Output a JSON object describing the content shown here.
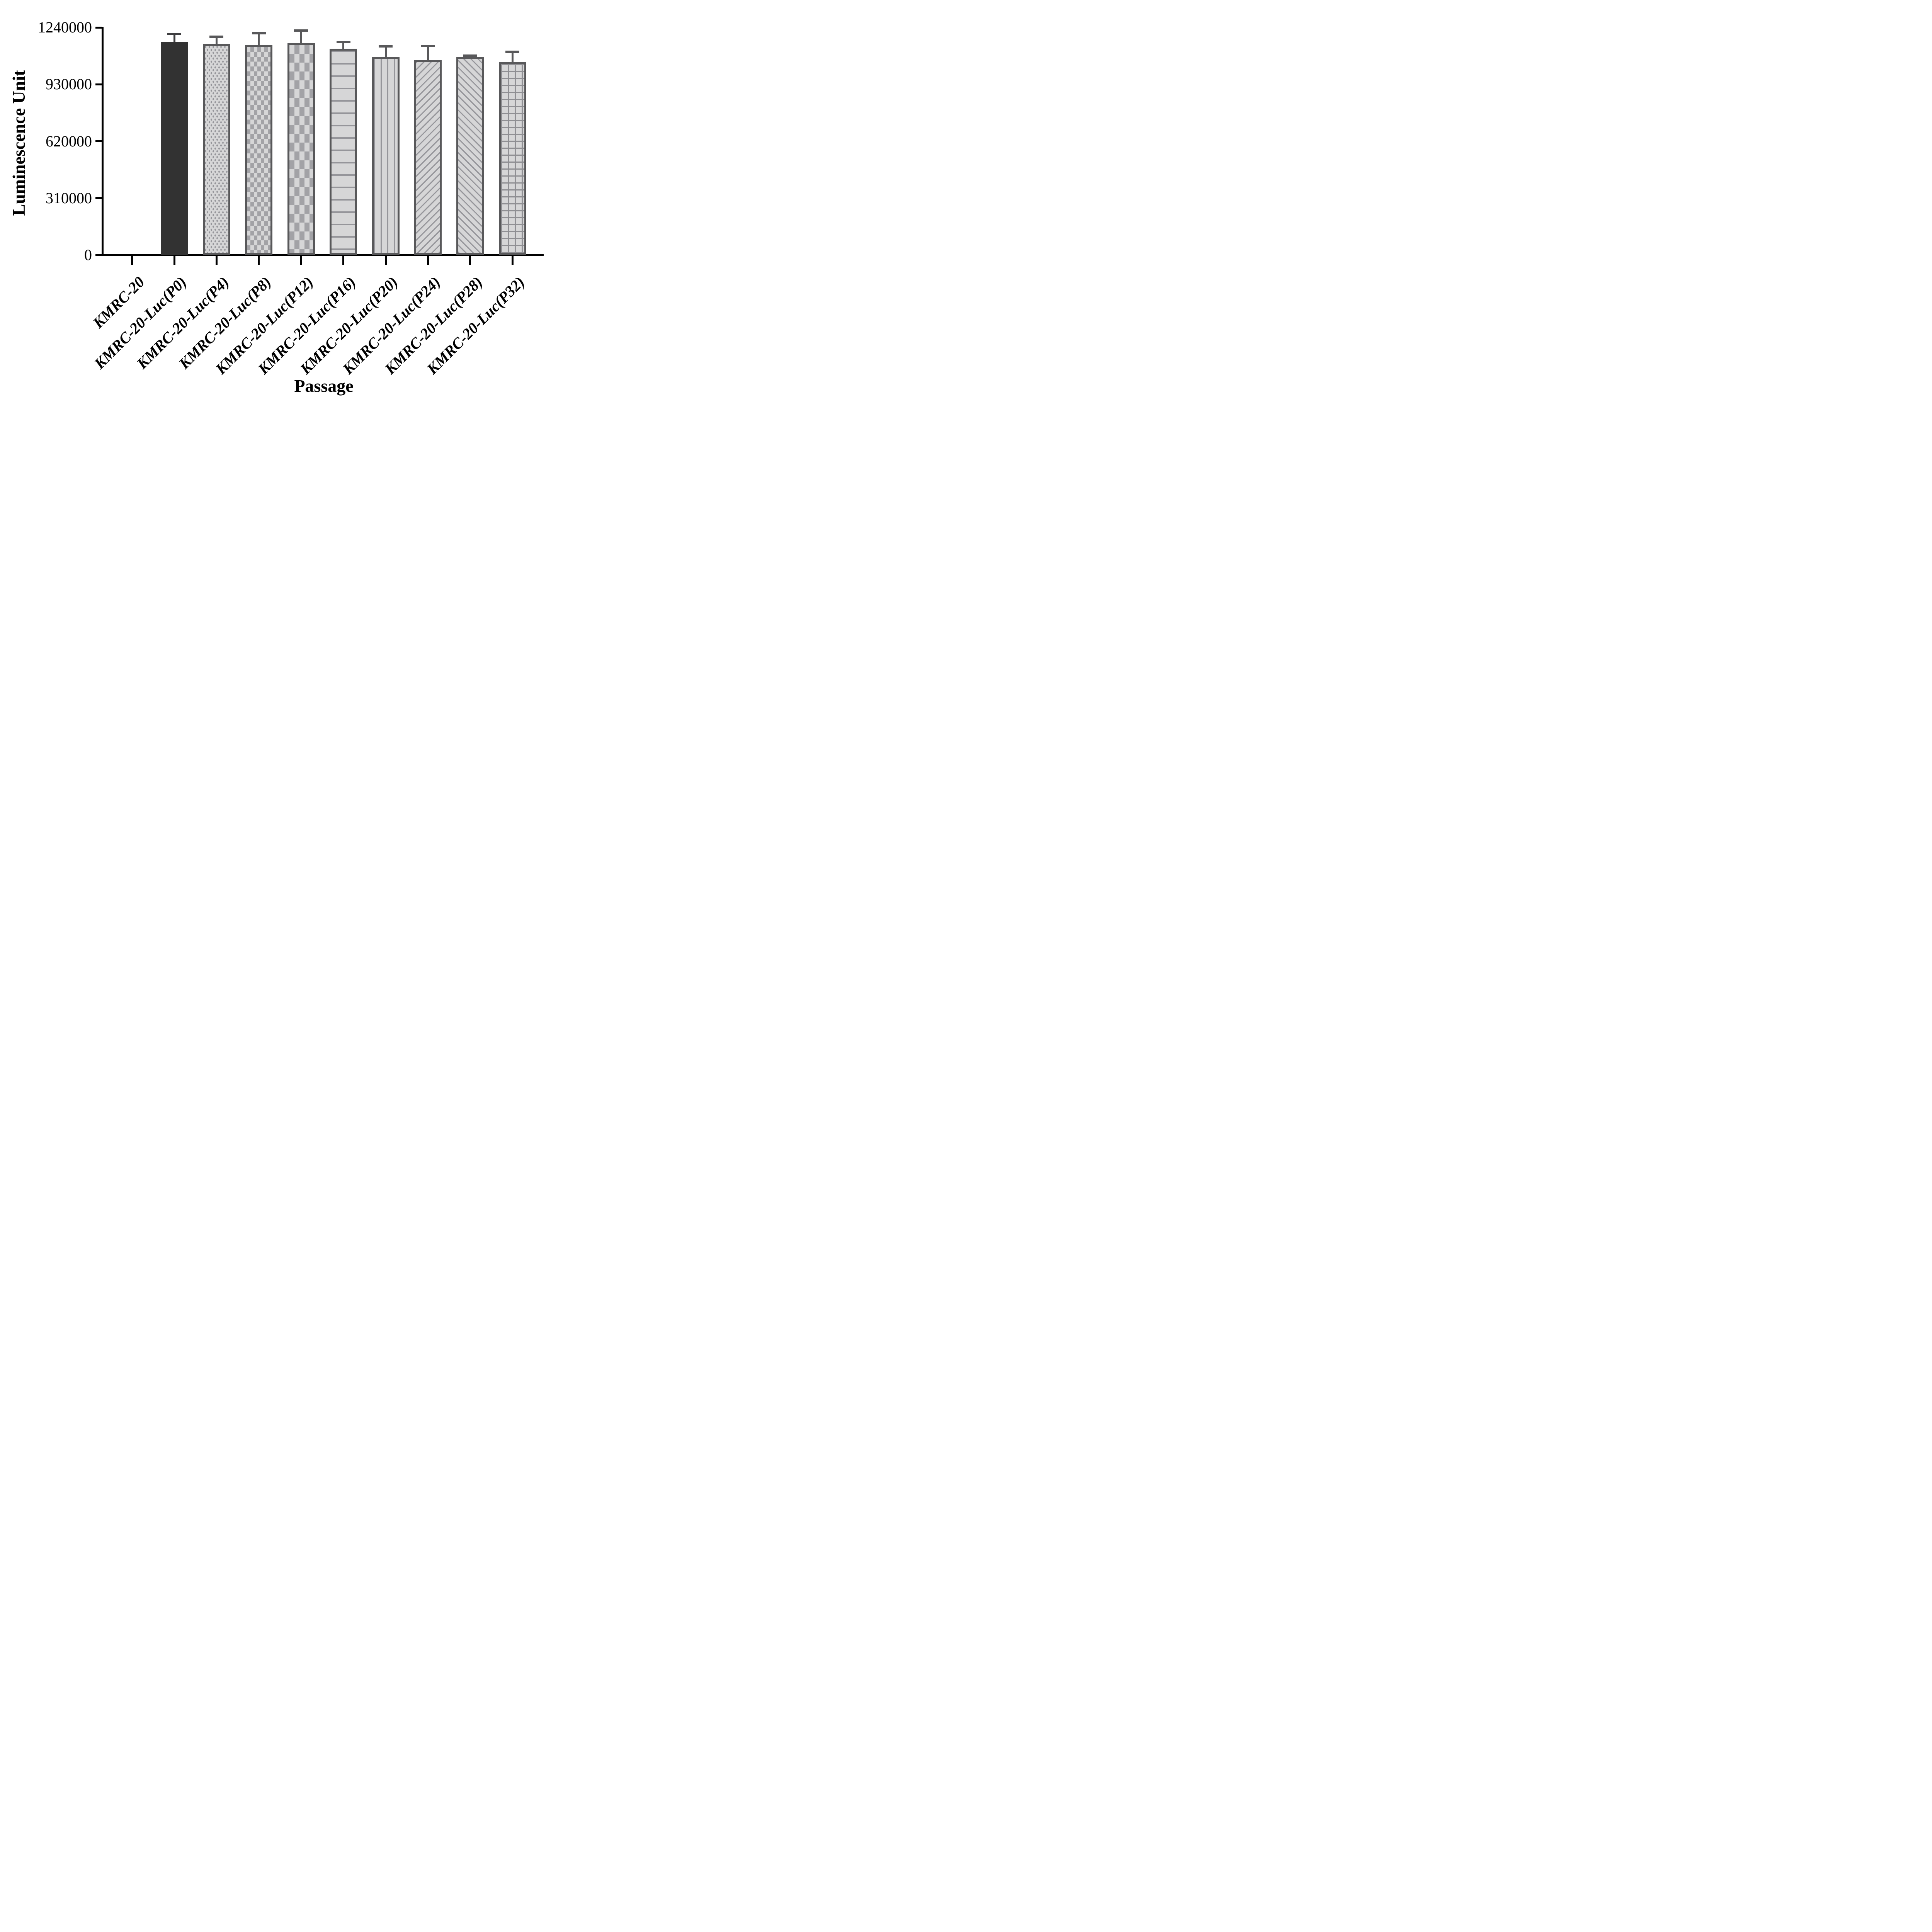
{
  "chart_data": {
    "type": "bar",
    "title": "",
    "xlabel": "Passage",
    "ylabel": "Luminescence Unit",
    "categories": [
      "KMRC-20",
      "KMRC-20-Luc(P0)",
      "KMRC-20-Luc(P4)",
      "KMRC-20-Luc(P8)",
      "KMRC-20-Luc(P12)",
      "KMRC-20-Luc(P16)",
      "KMRC-20-Luc(P20)",
      "KMRC-20-Luc(P24)",
      "KMRC-20-Luc(P28)",
      "KMRC-20-Luc(P32)"
    ],
    "values": [
      0,
      1160000,
      1149000,
      1144000,
      1155000,
      1124000,
      1080000,
      1064000,
      1079000,
      1050000
    ],
    "errors_plus": [
      0,
      45000,
      40000,
      64000,
      68000,
      37000,
      56000,
      74000,
      8000,
      57000
    ],
    "error_bars": "upper-only with cap",
    "ylim": [
      0,
      1240000
    ],
    "yticks": [
      0,
      310000,
      620000,
      930000,
      1240000
    ],
    "grid": false,
    "legend": "none",
    "bar_patterns": [
      "none",
      "solid",
      "dots",
      "checker-fine",
      "checker-coarse",
      "hlines",
      "vlines",
      "diag-forward",
      "diag-back",
      "grid"
    ],
    "colors": {
      "solid_bar": "#323232",
      "bar_fill": "#d6d6d7",
      "pattern_mark": "#95959a",
      "bar_border": "#58585a",
      "error_bar_dark": "#3d3d3f",
      "error_bar_gray": "#58585a",
      "axis": "#000000",
      "background": "#ffffff"
    }
  }
}
